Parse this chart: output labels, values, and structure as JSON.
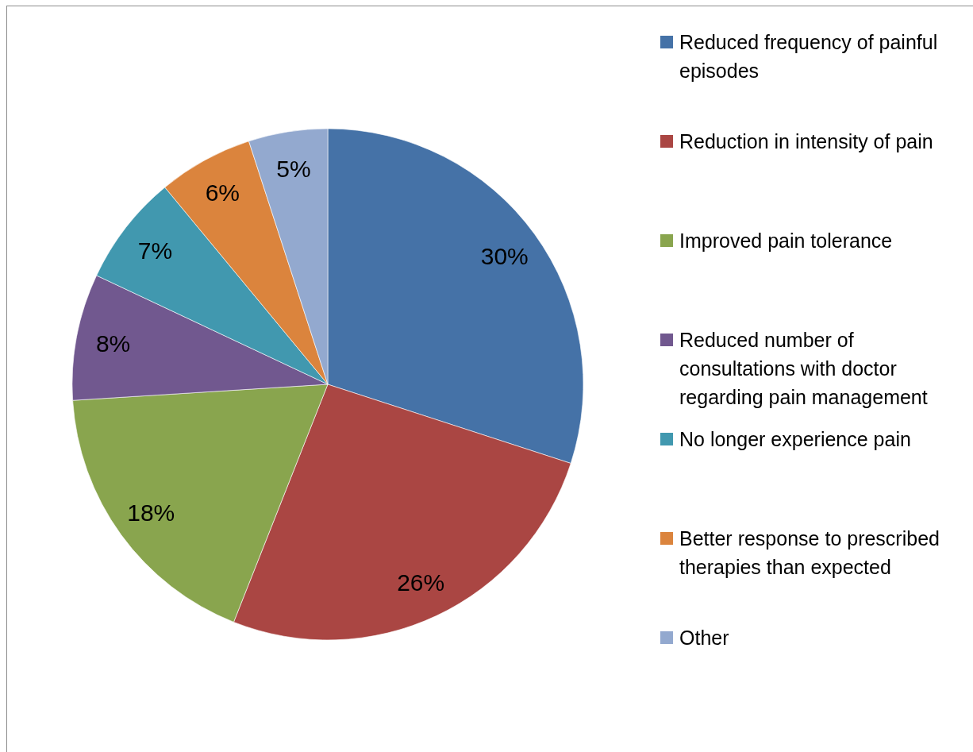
{
  "chart_data": {
    "type": "pie",
    "categories": [
      "Reduced frequency of painful episodes",
      "Reduction in intensity of pain",
      "Improved pain tolerance",
      "Reduced number of consultations with doctor regarding pain management",
      "No longer experience pain",
      "Better response to prescribed therapies than expected",
      "Other"
    ],
    "values": [
      30,
      26,
      18,
      8,
      7,
      6,
      5
    ],
    "colors": [
      "#4572a7",
      "#aa4643",
      "#89a54e",
      "#71588f",
      "#4198af",
      "#db843d",
      "#93a9cf"
    ],
    "value_labels": [
      "30%",
      "26%",
      "18%",
      "8%",
      "7%",
      "6%",
      "5%"
    ],
    "legend": "right"
  }
}
